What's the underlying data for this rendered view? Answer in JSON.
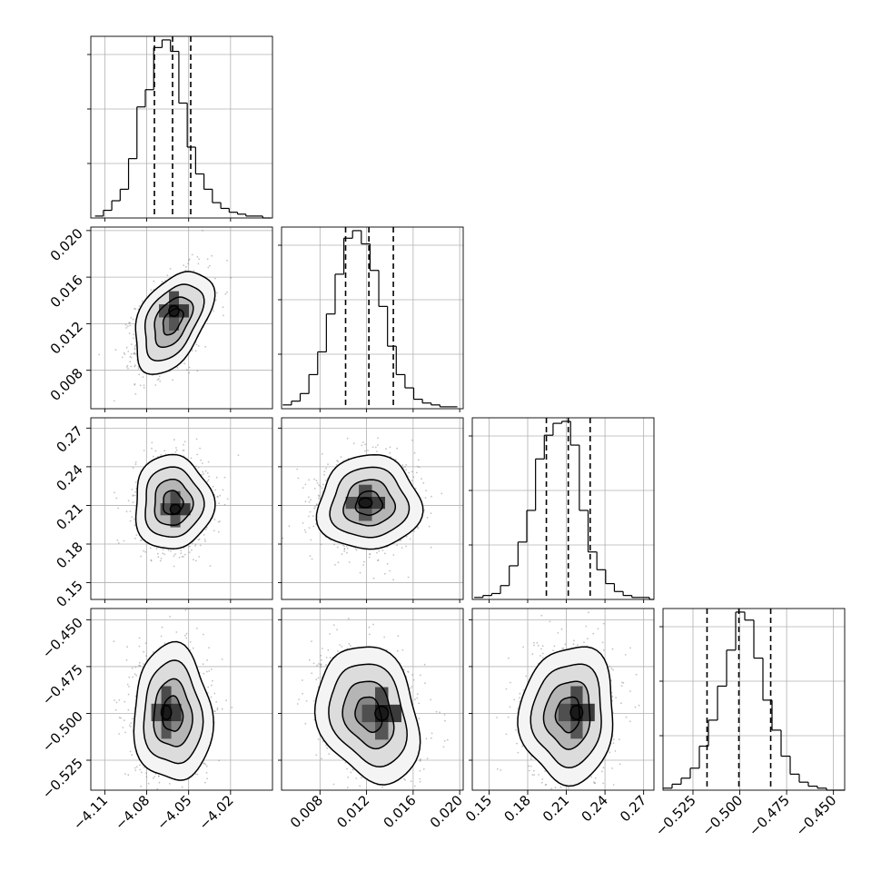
{
  "chart_data": {
    "type": "corner",
    "grid": true,
    "parameters": [
      {
        "range": [
          -4.12,
          -3.99
        ],
        "ticks": [
          -4.11,
          -4.08,
          -4.05,
          -4.02
        ],
        "tick_labels": [
          "−4.11",
          "−4.08",
          "−4.05",
          "−4.02"
        ],
        "quantiles": [
          -4.0745,
          -4.0615,
          -4.0485
        ],
        "hist_start": -4.117,
        "hist_bin": 0.006,
        "hist_counts": [
          1,
          4,
          9,
          15,
          31,
          58,
          67,
          89,
          93,
          87,
          60,
          37,
          23,
          15,
          8,
          5,
          3,
          2,
          1,
          1,
          0
        ]
      },
      {
        "range": [
          0.0047,
          0.0203
        ],
        "ticks": [
          0.008,
          0.012,
          0.016,
          0.02
        ],
        "tick_labels": [
          "0.008",
          "0.012",
          "0.016",
          "0.020"
        ],
        "quantiles": [
          0.0102,
          0.0122,
          0.0143
        ],
        "hist_start": 0.0048,
        "hist_bin": 0.00075,
        "hist_counts": [
          2,
          4,
          8,
          18,
          30,
          50,
          71,
          90,
          94,
          87,
          73,
          54,
          33,
          18,
          11,
          5,
          3,
          2,
          1,
          1
        ]
      },
      {
        "range": [
          0.137,
          0.278
        ],
        "ticks": [
          0.15,
          0.18,
          0.21,
          0.24,
          0.27
        ],
        "tick_labels": [
          "0.15",
          "0.18",
          "0.21",
          "0.24",
          "0.27"
        ],
        "quantiles": [
          0.1945,
          0.2115,
          0.2285
        ],
        "hist_start": 0.1385,
        "hist_bin": 0.0068,
        "hist_counts": [
          1,
          2,
          3,
          7,
          17,
          29,
          45,
          71,
          83,
          89,
          90,
          78,
          45,
          24,
          15,
          8,
          4,
          2,
          1,
          1,
          0
        ]
      },
      {
        "range": [
          -0.541,
          -0.444
        ],
        "ticks": [
          -0.525,
          -0.5,
          -0.475,
          -0.45
        ],
        "tick_labels": [
          "−0.525",
          "−0.500",
          "−0.475",
          "−0.450"
        ],
        "quantiles": [
          -0.5175,
          -0.5005,
          -0.4835
        ],
        "hist_start": -0.541,
        "hist_bin": 0.00485,
        "hist_counts": [
          1,
          3,
          6,
          11,
          22,
          35,
          52,
          70,
          89,
          85,
          66,
          45,
          30,
          17,
          8,
          4,
          2,
          1,
          0,
          0
        ]
      }
    ],
    "pairs": [
      {
        "row": 1,
        "col": 0,
        "mode": [
          -4.0615,
          0.0122
        ],
        "peak": [
          -4.0605,
          0.0131
        ],
        "corr": 0.45
      },
      {
        "row": 2,
        "col": 0,
        "mode": [
          -4.0615,
          0.212
        ],
        "peak": [
          -4.0595,
          0.207
        ],
        "corr": 0.0
      },
      {
        "row": 2,
        "col": 1,
        "mode": [
          0.0122,
          0.2115
        ],
        "peak": [
          0.0119,
          0.212
        ],
        "corr": 0.03
      },
      {
        "row": 3,
        "col": 0,
        "mode": [
          -4.0615,
          -0.5005
        ],
        "peak": [
          -4.066,
          -0.4995
        ],
        "corr": -0.04
      },
      {
        "row": 3,
        "col": 1,
        "mode": [
          0.0122,
          -0.5005
        ],
        "peak": [
          0.0133,
          -0.5
        ],
        "corr": -0.22
      },
      {
        "row": 3,
        "col": 2,
        "mode": [
          0.2115,
          -0.5005
        ],
        "peak": [
          0.218,
          -0.4995
        ],
        "corr": 0.05
      }
    ]
  }
}
